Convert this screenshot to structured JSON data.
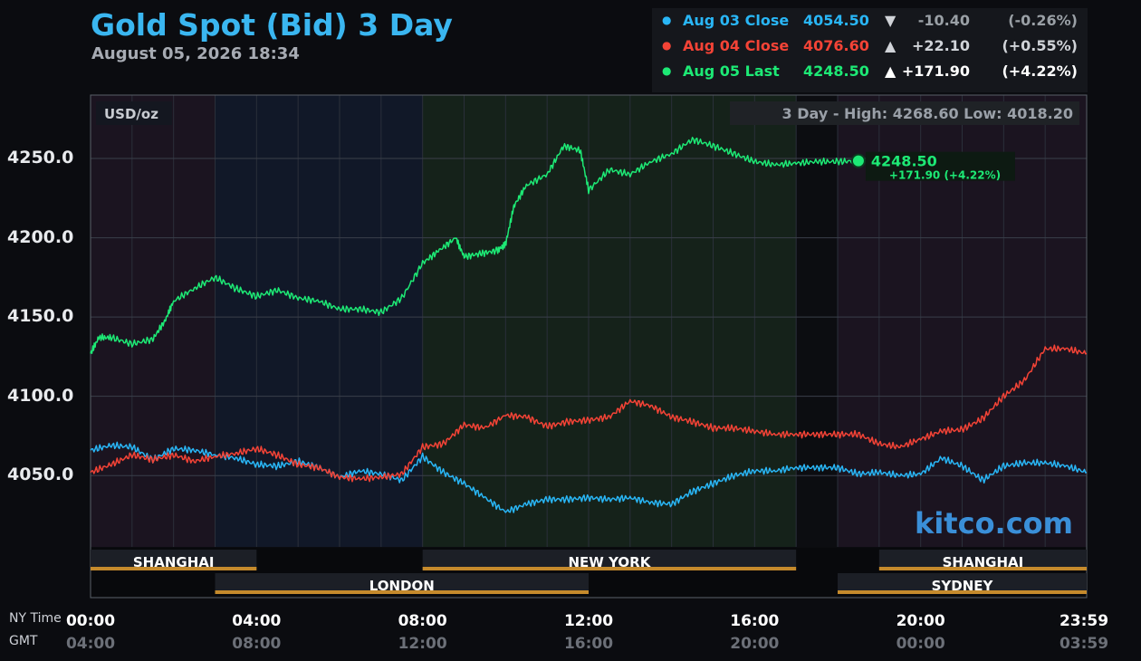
{
  "header": {
    "title": "Gold Spot (Bid) 3 Day",
    "timestamp": "August 05, 2026 18:34"
  },
  "legend": [
    {
      "label": "Aug 03 Close",
      "value": "4054.50",
      "arrow": "▼",
      "change": "-10.40",
      "percent": "(-0.26%)",
      "color": "#29b6f6",
      "text_color": "#29b6f6",
      "change_color": "#9aa0a6"
    },
    {
      "label": "Aug 04 Close",
      "value": "4076.60",
      "arrow": "▲",
      "change": "+22.10",
      "percent": "(+0.55%)",
      "color": "#f44336",
      "text_color": "#f44336",
      "change_color": "#d0d3d8"
    },
    {
      "label": "Aug 05 Last",
      "value": "4248.50",
      "arrow": "▲",
      "change": "+171.90",
      "percent": "(+4.22%)",
      "color": "#1de975",
      "text_color": "#1de975",
      "change_color": "#ffffff"
    }
  ],
  "chart_labels": {
    "unit": "USD/oz",
    "range": "3 Day - High: 4268.60  Low: 4018.20",
    "last_value": "4248.50",
    "last_change": "+171.90 (+4.22%)",
    "watermark": "kitco.com",
    "ny_time_caption": "NY Time",
    "gmt_caption": "GMT"
  },
  "sessions": [
    {
      "name": "SHANGHAI",
      "start": 0,
      "end": 4,
      "row": 1
    },
    {
      "name": "LONDON",
      "start": 3,
      "end": 12,
      "row": 2
    },
    {
      "name": "NEW YORK",
      "start": 8,
      "end": 17,
      "row": 1
    },
    {
      "name": "SHANGHAI",
      "start": 19,
      "end": 24,
      "row": 1
    },
    {
      "name": "SYDNEY",
      "start": 18,
      "end": 24,
      "row": 2
    }
  ],
  "chart_data": {
    "type": "line",
    "title": "Gold Spot (Bid) 3 Day",
    "ylabel": "USD/oz",
    "x_unit": "hours (NY time)",
    "xlim": [
      0,
      24
    ],
    "ylim": [
      4005,
      4290
    ],
    "yticks": [
      4050.0,
      4100.0,
      4150.0,
      4200.0,
      4250.0
    ],
    "ytick_labels": [
      "4050.0",
      "4100.0",
      "4150.0",
      "4200.0",
      "4250.0"
    ],
    "xticks": [
      0,
      4,
      8,
      12,
      16,
      20,
      24
    ],
    "xtick_labels_ny": [
      "00:00",
      "04:00",
      "08:00",
      "12:00",
      "16:00",
      "20:00",
      "23:59"
    ],
    "xtick_labels_gmt": [
      "04:00",
      "08:00",
      "12:00",
      "16:00",
      "20:00",
      "00:00",
      "03:59"
    ],
    "grid": true,
    "legend_position": "top-right",
    "high": 4268.6,
    "low": 4018.2,
    "series": [
      {
        "name": "Aug 03 Close",
        "color": "#29b6f6",
        "x": [
          0,
          0.5,
          1,
          1.5,
          2,
          2.5,
          3,
          3.5,
          4,
          4.5,
          5,
          5.5,
          6,
          6.5,
          7,
          7.5,
          8,
          8.5,
          9,
          9.5,
          10,
          10.5,
          11,
          11.5,
          12,
          12.5,
          13,
          13.5,
          14,
          14.5,
          15,
          15.5,
          16,
          16.5,
          17,
          17.5,
          18,
          18.5,
          19,
          19.5,
          20,
          20.5,
          21,
          21.5,
          22,
          22.5,
          23,
          23.5,
          24
        ],
        "y": [
          4066,
          4069,
          4068,
          4060,
          4067,
          4066,
          4063,
          4061,
          4057,
          4056,
          4059,
          4055,
          4049,
          4053,
          4051,
          4047,
          4062,
          4052,
          4045,
          4036,
          4027,
          4032,
          4035,
          4035,
          4036,
          4035,
          4036,
          4033,
          4032,
          4040,
          4045,
          4050,
          4053,
          4053,
          4055,
          4055,
          4055,
          4051,
          4052,
          4050,
          4051,
          4061,
          4056,
          4047,
          4056,
          4058,
          4058,
          4056,
          4052
        ]
      },
      {
        "name": "Aug 04 Close",
        "color": "#f44336",
        "x": [
          0,
          0.5,
          1,
          1.5,
          2,
          2.5,
          3,
          3.5,
          4,
          4.5,
          5,
          5.5,
          6,
          6.5,
          7,
          7.5,
          8,
          8.5,
          9,
          9.5,
          10,
          10.5,
          11,
          11.5,
          12,
          12.5,
          13,
          13.5,
          14,
          14.5,
          15,
          15.5,
          16,
          16.5,
          17,
          17.5,
          18,
          18.5,
          19,
          19.5,
          20,
          20.5,
          21,
          21.5,
          22,
          22.5,
          23,
          23.5,
          24
        ],
        "y": [
          4052,
          4057,
          4063,
          4060,
          4063,
          4059,
          4062,
          4064,
          4067,
          4063,
          4057,
          4055,
          4049,
          4048,
          4049,
          4051,
          4068,
          4070,
          4082,
          4080,
          4088,
          4087,
          4081,
          4084,
          4085,
          4087,
          4097,
          4094,
          4087,
          4084,
          4080,
          4080,
          4078,
          4076,
          4076,
          4076,
          4076,
          4076,
          4070,
          4068,
          4073,
          4078,
          4079,
          4086,
          4100,
          4110,
          4130,
          4130,
          4127
        ]
      },
      {
        "name": "Aug 05 Last",
        "color": "#1de975",
        "x": [
          0,
          0.2,
          0.5,
          1,
          1.5,
          1.8,
          2,
          2.5,
          3,
          3.5,
          4,
          4.5,
          5,
          5.5,
          6,
          6.5,
          7,
          7.5,
          8,
          8.4,
          8.8,
          9,
          9.4,
          9.8,
          10,
          10.2,
          10.5,
          11,
          11.4,
          11.8,
          12,
          12.5,
          13,
          13.5,
          14,
          14.5,
          15,
          15.5,
          16,
          16.5,
          17,
          17.5,
          18,
          18.5
        ],
        "y": [
          4127,
          4137,
          4137,
          4133,
          4136,
          4148,
          4160,
          4168,
          4175,
          4168,
          4163,
          4167,
          4162,
          4160,
          4155,
          4155,
          4153,
          4162,
          4184,
          4192,
          4200,
          4188,
          4190,
          4192,
          4196,
          4220,
          4233,
          4240,
          4258,
          4255,
          4230,
          4243,
          4240,
          4248,
          4253,
          4262,
          4258,
          4253,
          4248,
          4246,
          4247,
          4248,
          4248,
          4248.5
        ]
      }
    ]
  }
}
